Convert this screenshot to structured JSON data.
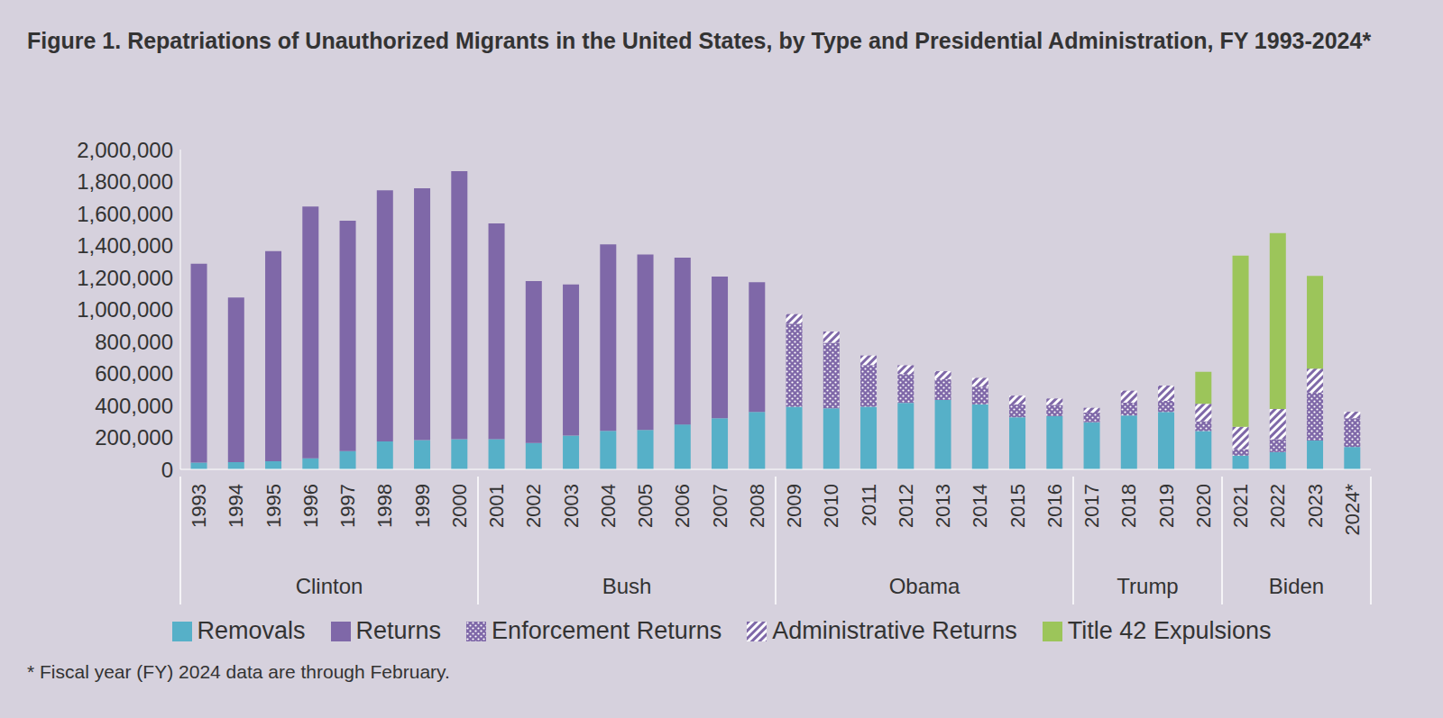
{
  "chart_data": {
    "type": "bar",
    "title": "Figure 1. Repatriations of Unauthorized Migrants in the United States, by Type and Presidential Administration, FY 1993-2024*",
    "footnote": "* Fiscal year (FY) 2024 data are through February.",
    "categories": [
      "1993",
      "1994",
      "1995",
      "1996",
      "1997",
      "1998",
      "1999",
      "2000",
      "2001",
      "2002",
      "2003",
      "2004",
      "2005",
      "2006",
      "2007",
      "2008",
      "2009",
      "2010",
      "2011",
      "2012",
      "2013",
      "2014",
      "2015",
      "2016",
      "2017",
      "2018",
      "2019",
      "2020",
      "2021",
      "2022",
      "2023",
      "2024*"
    ],
    "administrations": [
      {
        "name": "Clinton",
        "from": "1993",
        "to": "2000"
      },
      {
        "name": "Bush",
        "from": "2001",
        "to": "2008"
      },
      {
        "name": "Obama",
        "from": "2009",
        "to": "2016"
      },
      {
        "name": "Trump",
        "from": "2017",
        "to": "2020"
      },
      {
        "name": "Biden",
        "from": "2021",
        "to": "2024*"
      }
    ],
    "series": [
      {
        "name": "Removals",
        "color": "#56b0c8",
        "values": [
          42542,
          45674,
          50924,
          69680,
          114432,
          174813,
          183114,
          188467,
          189026,
          165168,
          211098,
          240665,
          246431,
          280974,
          319382,
          359795,
          391000,
          382000,
          392000,
          416000,
          434000,
          407000,
          326000,
          333000,
          295000,
          337000,
          359000,
          240000,
          86000,
          108000,
          180000,
          140000
        ]
      },
      {
        "name": "Returns",
        "color": "#7f68a8",
        "values": [
          1243410,
          1029107,
          1313764,
          1573428,
          1440684,
          1570127,
          1574863,
          1675876,
          1349371,
          1012116,
          945294,
          1166576,
          1096920,
          1043381,
          886663,
          811263,
          null,
          null,
          null,
          null,
          null,
          null,
          null,
          null,
          null,
          null,
          null,
          null,
          null,
          null,
          null,
          null
        ]
      },
      {
        "name": "Enforcement Returns",
        "color": "#7f68a8",
        "values": [
          null,
          null,
          null,
          null,
          null,
          null,
          null,
          null,
          null,
          null,
          null,
          null,
          null,
          null,
          null,
          null,
          520000,
          410000,
          260000,
          180000,
          130000,
          110000,
          80000,
          70000,
          60000,
          80000,
          70000,
          60000,
          40000,
          80000,
          300000,
          180000
        ]
      },
      {
        "name": "Administrative Returns",
        "color": "#7f68a8",
        "values": [
          null,
          null,
          null,
          null,
          null,
          null,
          null,
          null,
          null,
          null,
          null,
          null,
          null,
          null,
          null,
          null,
          60000,
          70000,
          60000,
          55000,
          50000,
          55000,
          55000,
          40000,
          30000,
          75000,
          95000,
          110000,
          140000,
          190000,
          150000,
          40000
        ]
      },
      {
        "name": "Title 42 Expulsions",
        "color": "#9cc55a",
        "values": [
          null,
          null,
          null,
          null,
          null,
          null,
          null,
          null,
          null,
          null,
          null,
          null,
          null,
          null,
          null,
          null,
          null,
          null,
          null,
          null,
          null,
          null,
          null,
          null,
          null,
          null,
          null,
          200000,
          1070000,
          1100000,
          580000,
          null
        ]
      }
    ],
    "ylim": [
      0,
      2000000
    ],
    "yticks": [
      0,
      {
        "value": 200000,
        "label": "200,000"
      },
      {
        "value": 400000,
        "label": "400,000"
      },
      {
        "value": 600000,
        "label": "600,000"
      },
      {
        "value": 800000,
        "label": "800,000"
      },
      {
        "value": 1000000,
        "label": "1,000,000"
      },
      {
        "value": 1200000,
        "label": "1,200,000"
      },
      {
        "value": 1400000,
        "label": "1,400,000"
      },
      {
        "value": 1600000,
        "label": "1,600,000"
      },
      {
        "value": 1800000,
        "label": "1,800,000"
      },
      {
        "value": 2000000,
        "label": "2,000,000"
      }
    ],
    "stacked": true,
    "grid": false,
    "legend": "bottom"
  }
}
